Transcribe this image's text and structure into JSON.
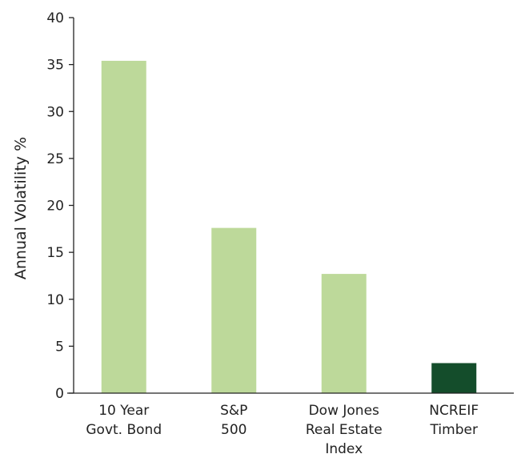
{
  "chart_data": {
    "type": "bar",
    "title": "",
    "xlabel": "",
    "ylabel": "Annual Volatility %",
    "ylim": [
      0,
      40
    ],
    "yticks": [
      0,
      5,
      10,
      15,
      20,
      25,
      30,
      35,
      40
    ],
    "grid": false,
    "categories": [
      [
        "10 Year",
        "Govt. Bond"
      ],
      [
        "S&P",
        "500"
      ],
      [
        "Dow Jones",
        "Real Estate",
        "Index"
      ],
      [
        "NCREIF",
        "Timber"
      ]
    ],
    "values": [
      35.4,
      17.6,
      12.7,
      3.2
    ],
    "colors": [
      "#bdd99a",
      "#bdd99a",
      "#bdd99a",
      "#144d2b"
    ]
  }
}
